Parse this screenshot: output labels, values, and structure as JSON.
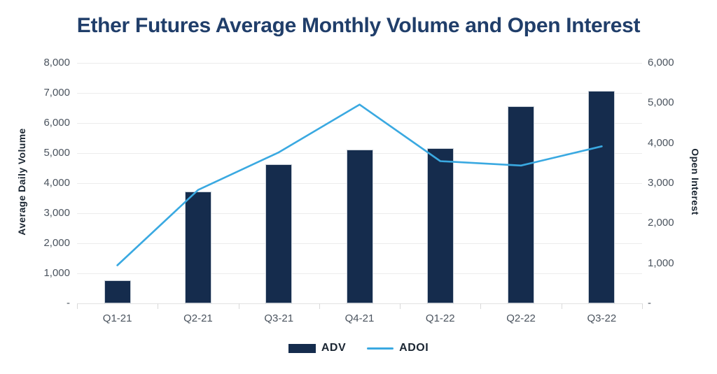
{
  "title": "Ether Futures Average Monthly Volume and Open Interest",
  "colors": {
    "bar": "#152c4d",
    "line": "#3aa9e1",
    "grid": "#ececec",
    "title_text": "#203e6a",
    "tick_text": "#4a535e"
  },
  "legend": {
    "items": [
      {
        "label": "ADV",
        "swatch": "bar"
      },
      {
        "label": "ADOI",
        "swatch": "line"
      }
    ]
  },
  "chart_data": {
    "type": "bar+line combo",
    "title": "Ether Futures Average Monthly Volume and Open Interest",
    "categories": [
      "Q1-21",
      "Q2-21",
      "Q3-21",
      "Q4-21",
      "Q1-22",
      "Q2-22",
      "Q3-22"
    ],
    "series": [
      {
        "name": "ADV",
        "type": "bar",
        "axis": "left",
        "color": "#152c4d",
        "values": [
          770,
          3720,
          4630,
          5110,
          5170,
          6570,
          7060
        ]
      },
      {
        "name": "ADOI",
        "type": "line",
        "axis": "right",
        "color": "#3aa9e1",
        "values": [
          950,
          2830,
          3770,
          4960,
          3550,
          3440,
          3920
        ]
      }
    ],
    "left_axis": {
      "label": "Average Daily Volume",
      "min": 0,
      "max": 8000,
      "tick_step": 1000,
      "ticks": [
        "8,000",
        "7,000",
        "6,000",
        "5,000",
        "4,000",
        "3,000",
        "2,000",
        "1,000",
        "-"
      ]
    },
    "right_axis": {
      "label": "Open Interest",
      "min": 0,
      "max": 6000,
      "tick_step": 1000,
      "ticks": [
        "6,000",
        "5,000",
        "4,000",
        "3,000",
        "2,000",
        "1,000",
        "-"
      ]
    },
    "grid": true,
    "legend_position": "bottom"
  }
}
